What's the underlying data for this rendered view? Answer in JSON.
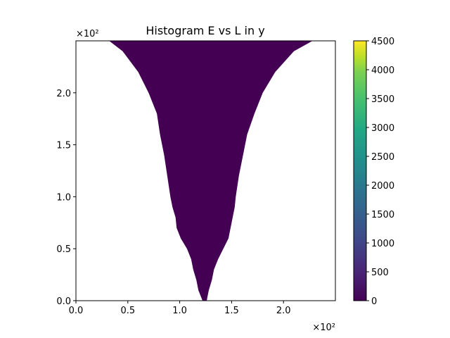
{
  "chart_data": {
    "type": "heatmap",
    "title": "Histogram E vs L in y",
    "xlabel": "",
    "ylabel": "",
    "x_offset_text": "×10²",
    "y_offset_text": "×10²",
    "xlim": [
      0,
      2.5
    ],
    "ylim": [
      0,
      2.5
    ],
    "x_ticks": [
      0.0,
      0.5,
      1.0,
      1.5,
      2.0
    ],
    "y_ticks": [
      0.0,
      0.5,
      1.0,
      1.5,
      2.0
    ],
    "x_tick_labels": [
      "0.0",
      "0.5",
      "1.0",
      "1.5",
      "2.0"
    ],
    "y_tick_labels": [
      "0.0",
      "0.5",
      "1.0",
      "1.5",
      "2.0"
    ],
    "grid": false,
    "colormap": "viridis",
    "colorbar": {
      "min": 0,
      "max": 4500,
      "ticks": [
        0,
        500,
        1000,
        1500,
        2000,
        2500,
        3000,
        3500,
        4000,
        4500
      ],
      "tick_labels": [
        "0",
        "500",
        "1000",
        "1500",
        "2000",
        "2500",
        "3000",
        "3500",
        "4000",
        "4500"
      ]
    },
    "region": {
      "description_value_level": 0,
      "fill_color": "#440154",
      "y": [
        0.0,
        0.1,
        0.2,
        0.3,
        0.4,
        0.5,
        0.6,
        0.7,
        0.8,
        0.9,
        1.0,
        1.2,
        1.4,
        1.6,
        1.8,
        2.0,
        2.2,
        2.4,
        2.5
      ],
      "x_left": [
        1.22,
        1.18,
        1.16,
        1.13,
        1.11,
        1.07,
        1.01,
        0.97,
        0.96,
        0.93,
        0.91,
        0.88,
        0.85,
        0.81,
        0.78,
        0.7,
        0.6,
        0.45,
        0.32
      ],
      "x_right": [
        1.26,
        1.28,
        1.31,
        1.33,
        1.37,
        1.42,
        1.47,
        1.49,
        1.51,
        1.53,
        1.54,
        1.57,
        1.61,
        1.65,
        1.72,
        1.8,
        1.92,
        2.1,
        2.28
      ]
    }
  }
}
